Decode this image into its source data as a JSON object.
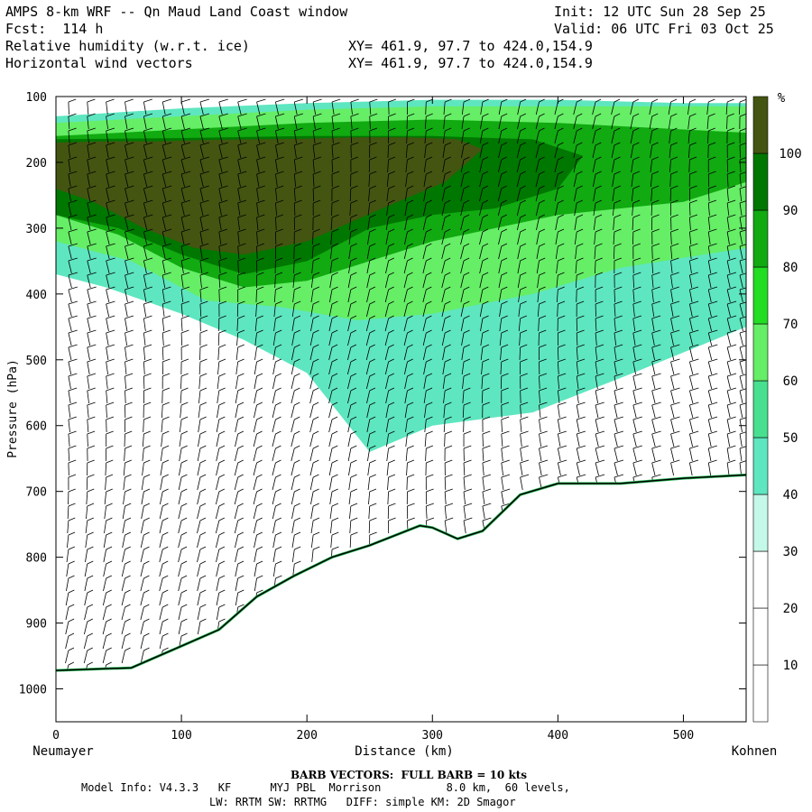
{
  "header": {
    "title": "AMPS 8-km WRF -- Qn Maud Land Coast window",
    "fcst": "Fcst:  114 h",
    "field1": "Relative humidity (w.r.t. ice)",
    "field2": "Horizontal wind vectors",
    "init": "Init: 12 UTC Sun 28 Sep 25",
    "valid": "Valid: 06 UTC Fri 03 Oct 25",
    "xy1": "XY= 461.9, 97.7 to 424.0,154.9",
    "xy2": "XY= 461.9, 97.7 to 424.0,154.9"
  },
  "footer": {
    "barb": "BARB VECTORS:  FULL BARB = 10 kts",
    "model1": "Model Info: V4.3.3   KF      MYJ PBL  Morrison          8.0 km,  60 levels,",
    "model2": "LW: RRTM SW: RRTMG   DIFF: simple KM: 2D Smagor"
  },
  "chart_data": {
    "type": "heatmap",
    "title": "Relative humidity (w.r.t. ice)",
    "xlabel": "Distance (km)",
    "ylabel": "Pressure (hPa)",
    "xlim": [
      0,
      550
    ],
    "ylim": [
      1050,
      100
    ],
    "x_ticks": [
      0,
      100,
      200,
      300,
      400,
      500
    ],
    "y_ticks": [
      100,
      200,
      300,
      400,
      500,
      600,
      700,
      800,
      900,
      1000
    ],
    "x_start_label": "Neumayer",
    "x_end_label": "Kohnen",
    "colorbar": {
      "unit": "%",
      "levels": [
        10,
        20,
        30,
        40,
        50,
        60,
        70,
        80,
        90,
        100
      ],
      "colors": [
        "#ffffff",
        "#ffffff",
        "#ffffff",
        "#c4f8e8",
        "#5ee6c0",
        "#48e090",
        "#66ee66",
        "#22dd22",
        "#11aa11",
        "#007700",
        "#445511"
      ]
    },
    "terrain": {
      "distance_km": [
        0,
        60,
        100,
        130,
        160,
        190,
        220,
        250,
        290,
        300,
        320,
        340,
        370,
        400,
        450,
        500,
        550
      ],
      "pressure_hPa": [
        972,
        968,
        935,
        910,
        860,
        828,
        800,
        782,
        752,
        755,
        772,
        760,
        705,
        688,
        688,
        680,
        675
      ]
    },
    "rh_contours": [
      {
        "level": 100,
        "distance_km": [
          0,
          40,
          80,
          120,
          160,
          200,
          240,
          280,
          320,
          340,
          310,
          260,
          200,
          150,
          110,
          70,
          30,
          0
        ],
        "pressure_hPa": [
          170,
          168,
          168,
          166,
          165,
          164,
          162,
          162,
          165,
          180,
          230,
          270,
          320,
          340,
          330,
          300,
          260,
          240
        ]
      },
      {
        "level": 90,
        "distance_km": [
          0,
          100,
          200,
          300,
          380,
          420,
          400,
          350,
          300,
          250,
          200,
          150,
          100,
          50,
          0
        ],
        "pressure_hPa": [
          165,
          163,
          160,
          160,
          165,
          190,
          240,
          270,
          280,
          300,
          350,
          370,
          340,
          300,
          280
        ]
      },
      {
        "level": 80,
        "distance_km": [
          0,
          100,
          200,
          300,
          400,
          500,
          550,
          550,
          500,
          450,
          400,
          350,
          300,
          250,
          200,
          150,
          100,
          50,
          0
        ],
        "pressure_hPa": [
          160,
          150,
          140,
          135,
          140,
          150,
          155,
          230,
          260,
          270,
          280,
          300,
          320,
          350,
          380,
          390,
          360,
          310,
          280
        ]
      },
      {
        "level": 60,
        "distance_km": [
          0,
          100,
          200,
          300,
          400,
          500,
          550,
          550,
          450,
          380,
          300,
          240,
          180,
          120,
          60,
          0
        ],
        "pressure_hPa": [
          140,
          130,
          120,
          115,
          115,
          115,
          115,
          330,
          360,
          400,
          430,
          440,
          420,
          410,
          350,
          320
        ]
      },
      {
        "level": 40,
        "distance_km": [
          0,
          100,
          200,
          300,
          400,
          500,
          550,
          550,
          460,
          380,
          300,
          250,
          200,
          150,
          100,
          40,
          0
        ],
        "pressure_hPa": [
          130,
          118,
          110,
          105,
          105,
          110,
          110,
          450,
          520,
          580,
          600,
          640,
          520,
          470,
          430,
          390,
          370
        ]
      }
    ],
    "wind_barb_columns_km": [
      10,
      25,
      40,
      55,
      70,
      85,
      100,
      115,
      130,
      145,
      160,
      175,
      190,
      205,
      220,
      235,
      250,
      265,
      280,
      295,
      310,
      325,
      340,
      355,
      370,
      385,
      400,
      415,
      430,
      445,
      460,
      475,
      490,
      505,
      520,
      535,
      545
    ]
  }
}
